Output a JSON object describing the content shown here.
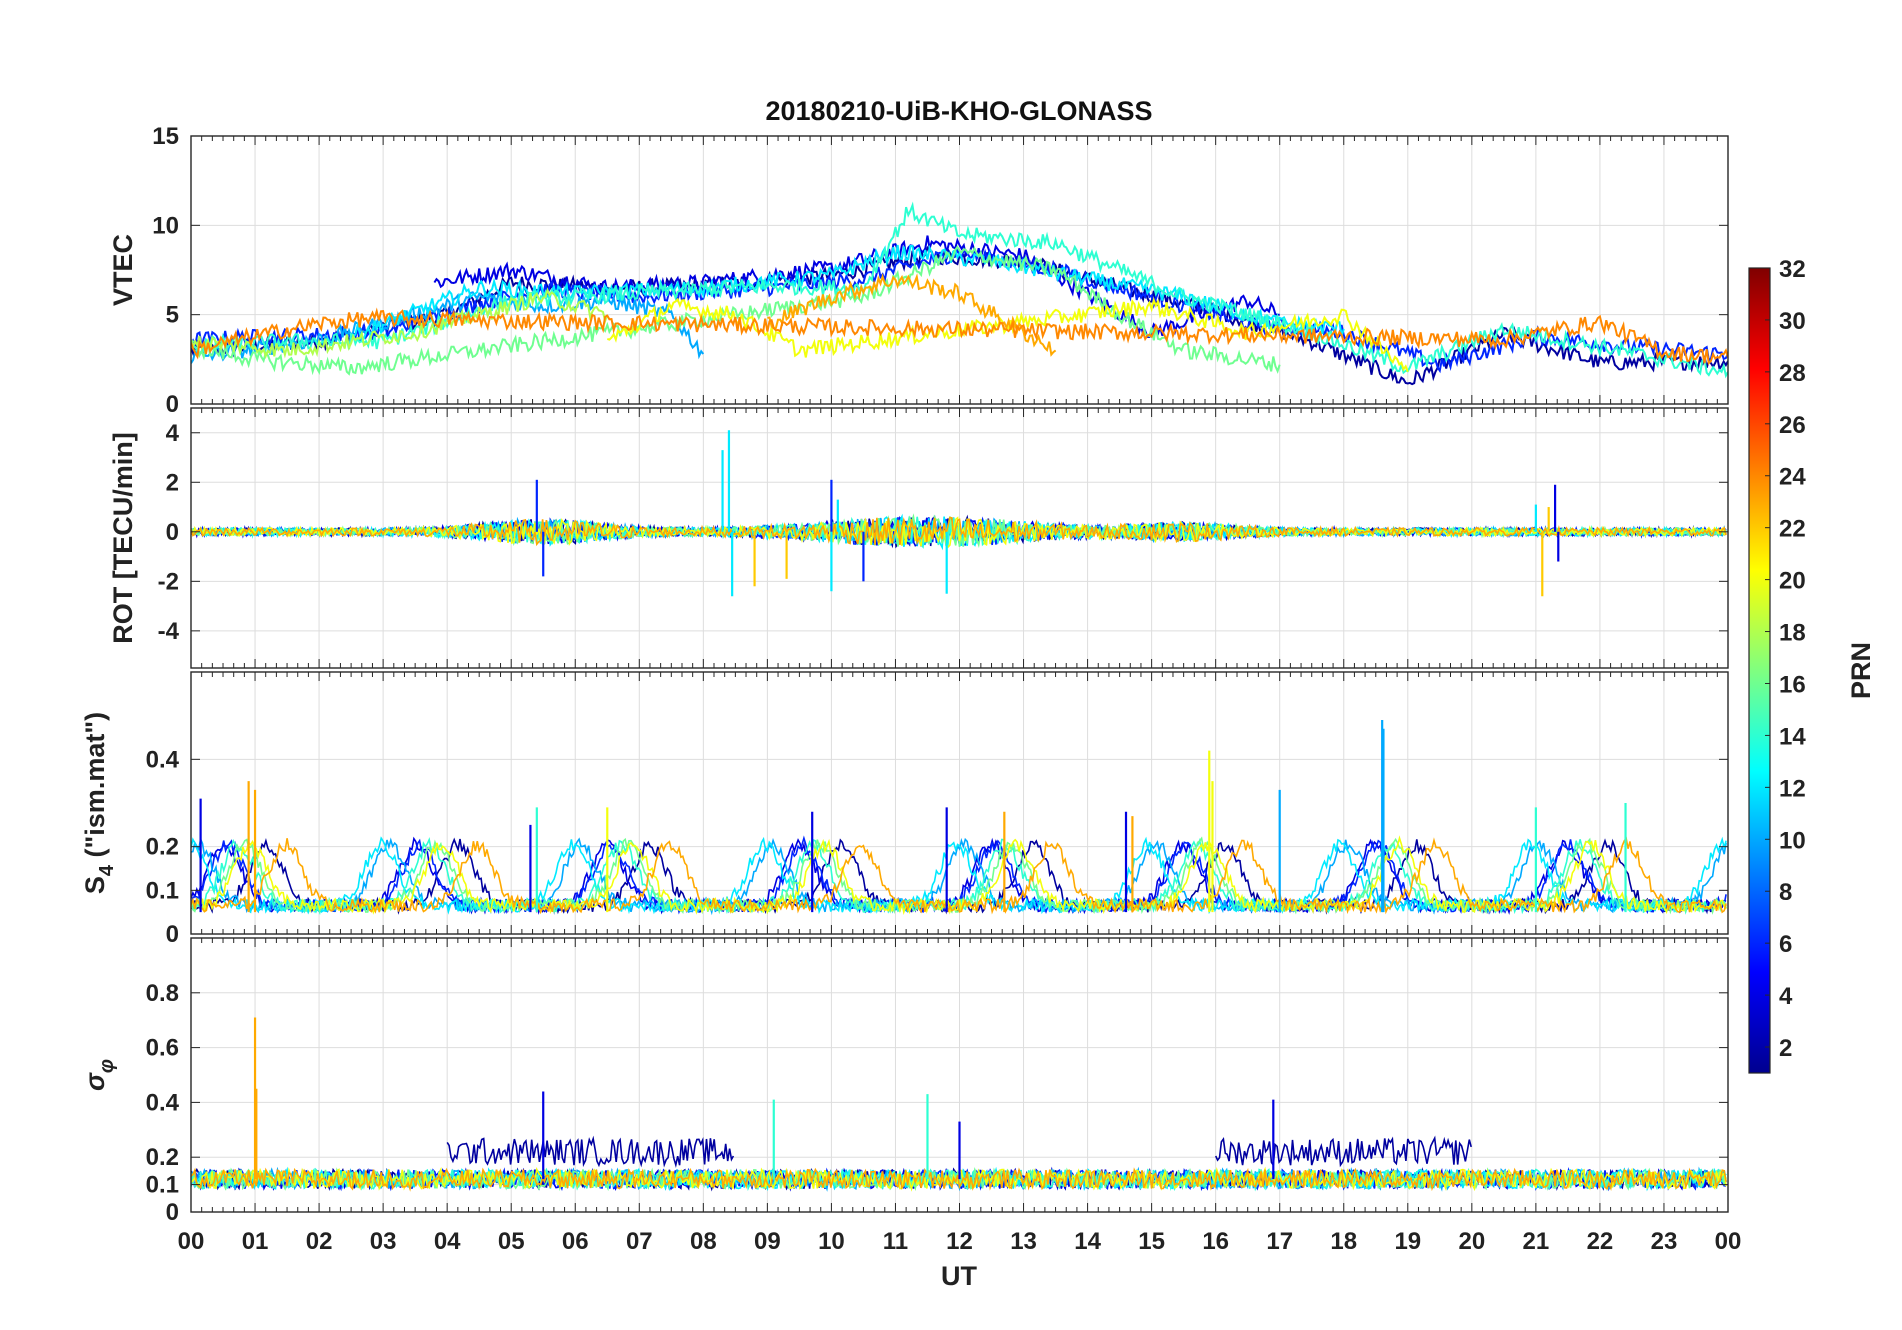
{
  "chart_data": {
    "type": "line",
    "title": "20180210-UiB-KHO-GLONASS",
    "xlabel": "UT",
    "x_range": [
      0,
      24
    ],
    "x_tick_labels": [
      "00",
      "01",
      "02",
      "03",
      "04",
      "05",
      "06",
      "07",
      "08",
      "09",
      "10",
      "11",
      "12",
      "13",
      "14",
      "15",
      "16",
      "17",
      "18",
      "19",
      "20",
      "21",
      "22",
      "23",
      "00"
    ],
    "grid": true,
    "colorbar": {
      "label": "PRN",
      "range": [
        1,
        32
      ],
      "ticks": [
        2,
        4,
        6,
        8,
        10,
        12,
        14,
        16,
        18,
        20,
        22,
        24,
        26,
        28,
        30,
        32
      ],
      "colormap": "jet",
      "position": "right"
    },
    "panels": [
      {
        "id": "vtec",
        "ylabel": "VTEC",
        "ylim": [
          0,
          15
        ],
        "yticks": [
          0,
          5,
          10,
          15
        ],
        "series": [
          {
            "prn": 2,
            "x": [
              0.0,
              2.0,
              4.0,
              5.0,
              6.5,
              8.0,
              10.0,
              11.5,
              13.0,
              14.5,
              16.0,
              17.5,
              19.0,
              20.5,
              22.0,
              24.0
            ],
            "y": [
              3.0,
              3.5,
              5.0,
              6.8,
              6.5,
              6.6,
              7.2,
              8.3,
              8.0,
              6.5,
              5.2,
              3.5,
              1.2,
              3.9,
              2.3,
              2.4
            ]
          },
          {
            "prn": 4,
            "x": [
              3.8,
              5.0,
              6.5,
              8.0,
              10.0,
              11.5,
              13.0,
              15.0,
              16.5,
              17.0
            ],
            "y": [
              6.8,
              7.5,
              6.5,
              6.8,
              7.6,
              9.0,
              8.3,
              4.0,
              5.8,
              5.0
            ]
          },
          {
            "prn": 6,
            "x": [
              0.0,
              1.5,
              3.0,
              4.5,
              5.5,
              7.0,
              9.0,
              10.5,
              12.0,
              13.5,
              15.0,
              16.5,
              18.0,
              19.5,
              21.0,
              22.5,
              24.0
            ],
            "y": [
              3.6,
              3.8,
              4.0,
              5.6,
              6.4,
              6.0,
              6.5,
              7.0,
              8.5,
              7.5,
              6.0,
              4.5,
              4.0,
              2.2,
              3.8,
              3.2,
              2.8
            ]
          },
          {
            "prn": 10,
            "x": [
              0.0,
              2.0,
              3.5,
              4.5,
              5.5,
              6.5,
              7.5,
              8.0
            ],
            "y": [
              2.6,
              3.6,
              5.0,
              6.0,
              5.5,
              5.8,
              5.0,
              2.8
            ]
          },
          {
            "prn": 12,
            "x": [
              2.5,
              4.5,
              6.0,
              8.0,
              10.0,
              11.0,
              12.5,
              14.0,
              15.5,
              17.0,
              18.0
            ],
            "y": [
              3.8,
              6.5,
              6.2,
              6.5,
              7.2,
              8.5,
              8.0,
              7.0,
              6.0,
              4.5,
              4.2
            ]
          },
          {
            "prn": 14,
            "x": [
              0.0,
              1.5,
              3.0,
              5.0,
              7.0,
              9.0,
              10.5,
              11.2,
              12.0,
              13.5,
              15.5,
              17.5,
              19.0,
              20.5,
              22.0,
              24.0
            ],
            "y": [
              3.3,
              3.5,
              3.5,
              5.8,
              6.2,
              6.6,
              6.5,
              10.8,
              9.5,
              9.0,
              6.0,
              4.0,
              2.0,
              4.2,
              3.2,
              1.8
            ]
          },
          {
            "prn": 16,
            "x": [
              0.0,
              1.0,
              2.5,
              10.5,
              12.0,
              13.5,
              14.5,
              15.5,
              17.0
            ],
            "y": [
              3.2,
              2.5,
              2.0,
              6.0,
              8.5,
              7.5,
              5.0,
              3.0,
              2.2
            ]
          },
          {
            "prn": 18,
            "x": [
              0.0,
              1.5,
              3.5,
              4.5,
              5.5,
              6.5
            ],
            "y": [
              3.5,
              3.0,
              4.0,
              5.0,
              6.0,
              5.0
            ]
          },
          {
            "prn": 20,
            "x": [
              6.5,
              7.5,
              8.5,
              9.5,
              15.0,
              16.5,
              18.0,
              19.0
            ],
            "y": [
              3.5,
              5.5,
              5.0,
              3.0,
              5.5,
              4.0,
              5.0,
              1.8
            ]
          },
          {
            "prn": 23,
            "x": [
              9.0,
              10.0,
              11.0,
              12.0,
              13.0,
              13.5
            ],
            "y": [
              4.5,
              6.0,
              7.0,
              6.2,
              4.0,
              3.0
            ]
          },
          {
            "prn": 24,
            "x": [
              0.0,
              1.0,
              2.0,
              2.8,
              20.5,
              22.0,
              23.0,
              24.0
            ],
            "y": [
              3.0,
              3.8,
              4.5,
              4.8,
              3.6,
              4.6,
              2.9,
              2.6
            ]
          }
        ]
      },
      {
        "id": "rot",
        "ylabel": "ROT [TECU/min]",
        "ylim": [
          -5.5,
          5.0
        ],
        "yticks": [
          -4,
          -2,
          0,
          2,
          4
        ],
        "spikes": [
          {
            "prn": 6,
            "x": [
              5.4,
              5.5,
              10.0,
              10.5
            ],
            "y": [
              2.1,
              -1.8,
              2.1,
              -2.0
            ]
          },
          {
            "prn": 12,
            "x": [
              8.3,
              8.4,
              8.45,
              10.0,
              10.1,
              11.8,
              21.0
            ],
            "y": [
              3.3,
              4.1,
              -2.6,
              -2.4,
              1.3,
              -2.5,
              1.1
            ]
          },
          {
            "prn": 22,
            "x": [
              8.8,
              9.3,
              21.1,
              21.2
            ],
            "y": [
              -2.2,
              -1.9,
              -2.6,
              1.0
            ]
          },
          {
            "prn": 4,
            "x": [
              21.3,
              21.35
            ],
            "y": [
              1.9,
              -1.2
            ]
          }
        ]
      },
      {
        "id": "s4",
        "ylabel": "S4 (\"ism.mat\")",
        "ylabel_main": "S",
        "ylabel_sub": "4",
        "ylabel_rest": " (\"ism.mat\")",
        "ylim": [
          0,
          0.6
        ],
        "yticks": [
          0,
          0.1,
          0.2,
          0.4
        ],
        "baseline": 0.05,
        "spikes": [
          {
            "prn": 23,
            "x": [
              0.9,
              1.0,
              12.7,
              14.7
            ],
            "y": [
              0.35,
              0.33,
              0.28,
              0.27
            ]
          },
          {
            "prn": 4,
            "x": [
              0.15,
              5.3,
              9.7,
              11.8,
              14.6
            ],
            "y": [
              0.31,
              0.25,
              0.28,
              0.29,
              0.28
            ]
          },
          {
            "prn": 10,
            "x": [
              18.6,
              18.62,
              17.0
            ],
            "y": [
              0.49,
              0.47,
              0.33
            ]
          },
          {
            "prn": 20,
            "x": [
              15.9,
              15.95,
              6.5
            ],
            "y": [
              0.42,
              0.35,
              0.29
            ]
          },
          {
            "prn": 14,
            "x": [
              5.4,
              21.0,
              22.4
            ],
            "y": [
              0.29,
              0.29,
              0.3
            ]
          }
        ]
      },
      {
        "id": "sigma_phi",
        "ylabel": "σφ",
        "ylabel_main": "σ",
        "ylabel_sub": "φ",
        "ylim": [
          0,
          1.0
        ],
        "yticks": [
          0,
          0.1,
          0.2,
          0.4,
          0.6,
          0.8
        ],
        "baseline": 0.12,
        "spikes": [
          {
            "prn": 23,
            "x": [
              1.0,
              1.02
            ],
            "y": [
              0.71,
              0.45
            ]
          },
          {
            "prn": 4,
            "x": [
              5.5,
              16.9,
              12.0
            ],
            "y": [
              0.44,
              0.41,
              0.33
            ]
          },
          {
            "prn": 14,
            "x": [
              11.5,
              9.1
            ],
            "y": [
              0.43,
              0.41
            ]
          }
        ],
        "bands": [
          {
            "prn": 2,
            "x_start": 4.0,
            "x_end": 8.5,
            "level": 0.22
          },
          {
            "prn": 2,
            "x_start": 16.0,
            "x_end": 20.0,
            "level": 0.22
          }
        ]
      }
    ]
  }
}
